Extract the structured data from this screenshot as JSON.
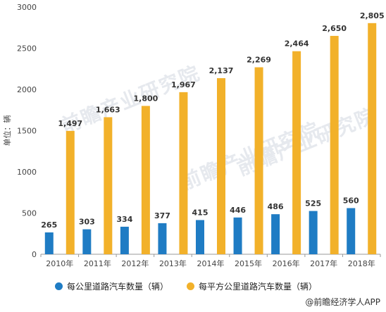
{
  "watermark": "前瞻产业研究院",
  "source": "@前瞻经济学人APP",
  "chart_data": {
    "type": "bar",
    "categories": [
      "2010年",
      "2011年",
      "2012年",
      "2013年",
      "2014年",
      "2015年",
      "2016年",
      "2017年",
      "2018年"
    ],
    "series": [
      {
        "name": "每公里道路汽车数量（辆）",
        "color": "#1f7cc4",
        "values": [
          265,
          303,
          334,
          377,
          415,
          446,
          486,
          525,
          560
        ],
        "labels": [
          "265",
          "303",
          "334",
          "377",
          "415",
          "446",
          "486",
          "525",
          "560"
        ]
      },
      {
        "name": "每平方公里道路汽车数量（辆）",
        "color": "#f2b12a",
        "values": [
          1497,
          1663,
          1800,
          1967,
          2137,
          2269,
          2464,
          2650,
          2805
        ],
        "labels": [
          "1,497",
          "1,663",
          "1,800",
          "1,967",
          "2,137",
          "2,269",
          "2,464",
          "2,650",
          "2,805"
        ]
      }
    ],
    "ylabel": "单位：辆",
    "ylim": [
      0,
      3000
    ],
    "yticks": [
      0,
      500,
      1000,
      1500,
      2000,
      2500,
      3000
    ],
    "grid": false,
    "legend_position": "bottom"
  }
}
